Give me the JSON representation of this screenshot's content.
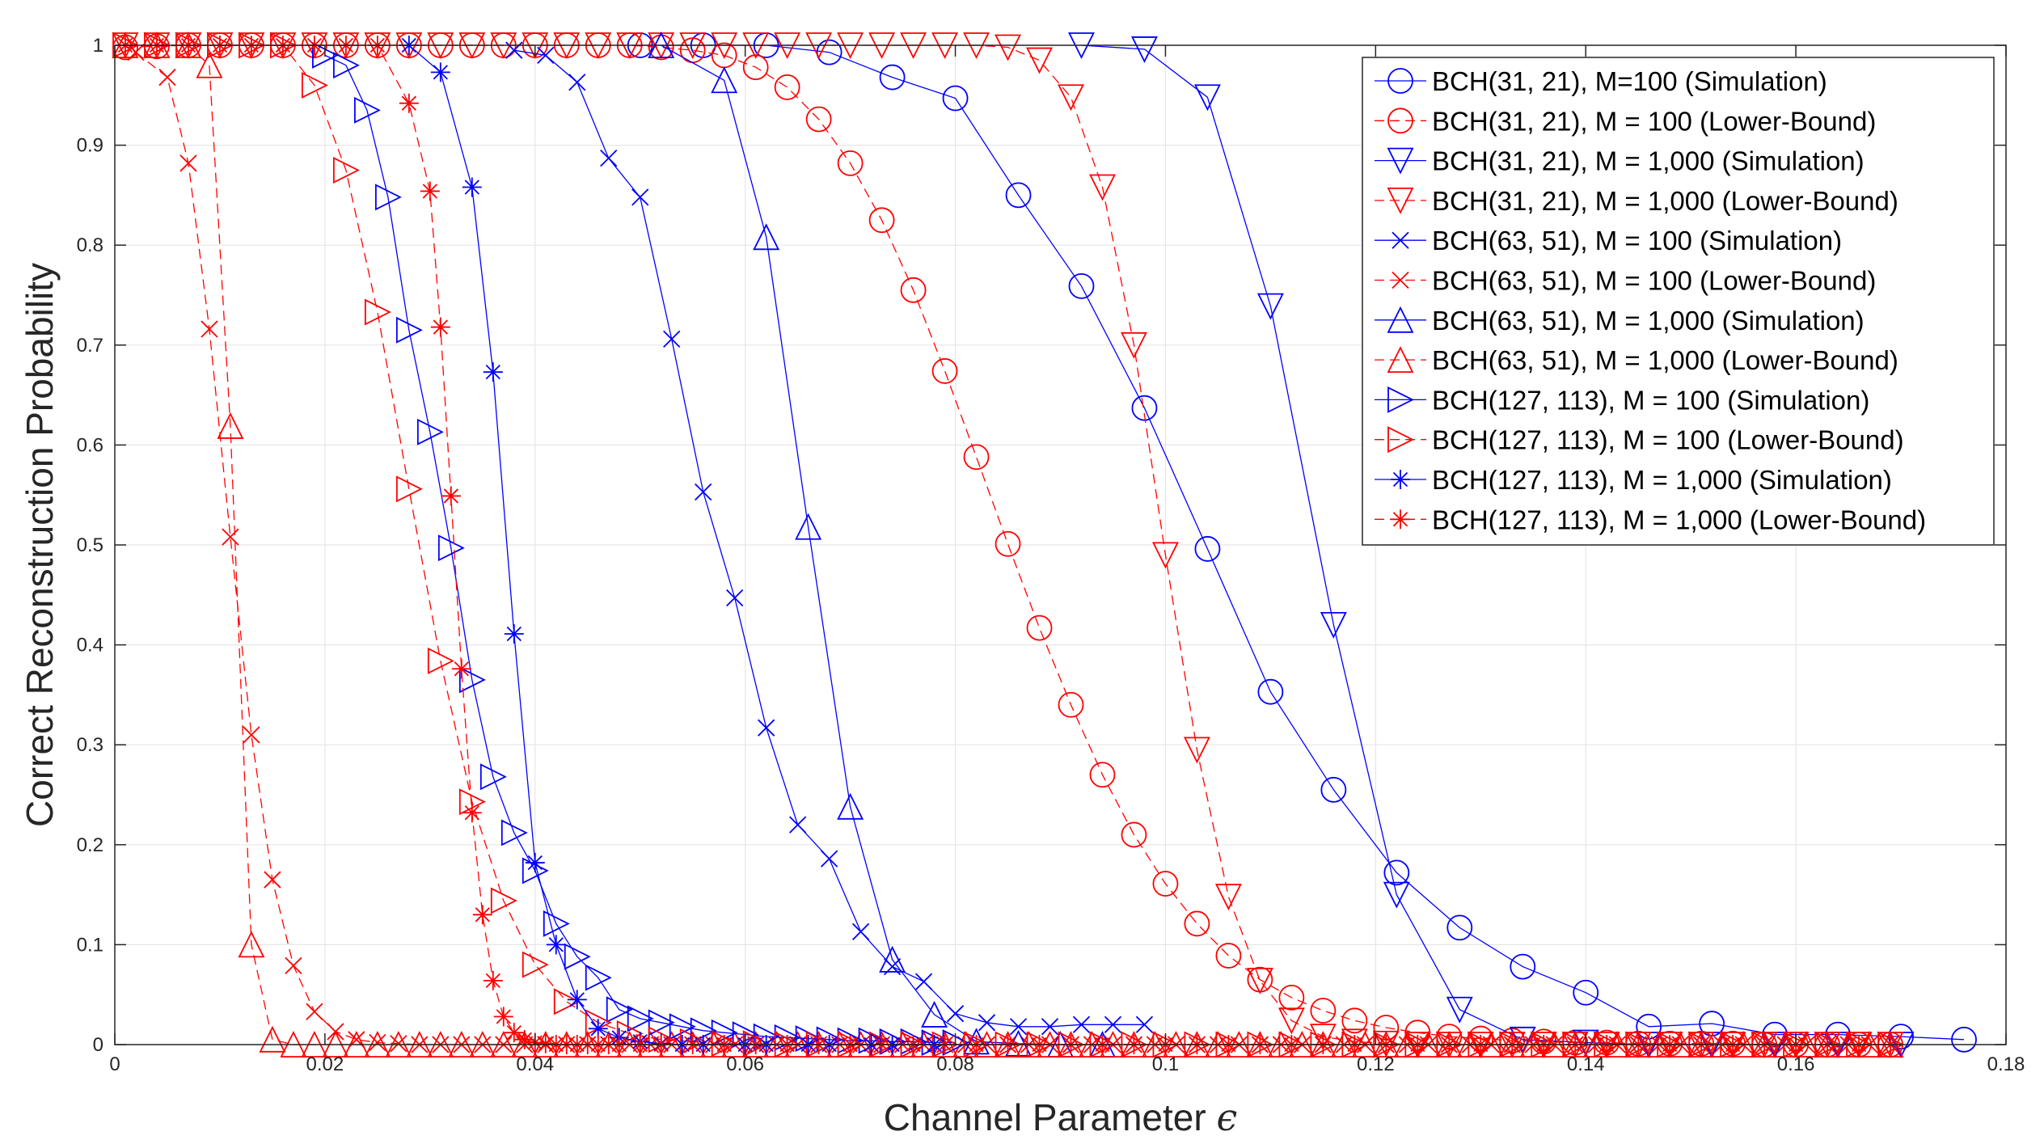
{
  "chart_data": {
    "type": "line",
    "title": "",
    "xlabel": "Channel Parameter ",
    "xlabel_symbol": "ϵ",
    "ylabel": "Correct Reconstruction Probability",
    "xlim": [
      0,
      0.18
    ],
    "ylim": [
      0,
      1
    ],
    "x_ticks": [
      "0",
      "0.02",
      "0.04",
      "0.06",
      "0.08",
      "0.1",
      "0.12",
      "0.14",
      "0.16",
      "0.18"
    ],
    "y_ticks": [
      "0",
      "0.1",
      "0.2",
      "0.3",
      "0.4",
      "0.5",
      "0.6",
      "0.7",
      "0.8",
      "0.9",
      "1"
    ],
    "grid": true,
    "legend_position": "top-right",
    "series": [
      {
        "name": "BCH(31, 21), M=100 (Simulation)",
        "color": "#0000ff",
        "dash": "solid",
        "marker": "circle",
        "x": [
          0.05,
          0.056,
          0.062,
          0.068,
          0.074,
          0.08,
          0.086,
          0.092,
          0.098,
          0.104,
          0.11,
          0.116,
          0.122,
          0.128,
          0.134,
          0.14,
          0.146,
          0.152,
          0.158,
          0.164,
          0.17,
          0.176
        ],
        "y": [
          1,
          1,
          1,
          0.993,
          0.968,
          0.947,
          0.85,
          0.759,
          0.637,
          0.496,
          0.353,
          0.255,
          0.172,
          0.117,
          0.078,
          0.052,
          0.018,
          0.021,
          0.01,
          0.01,
          0.008,
          0.005
        ]
      },
      {
        "name": "BCH(31, 21), M = 100 (Lower-Bound)",
        "color": "#ff0000",
        "dash": "dashed",
        "marker": "circle",
        "x": [
          0.001,
          0.004,
          0.007,
          0.01,
          0.013,
          0.016,
          0.019,
          0.022,
          0.025,
          0.028,
          0.031,
          0.034,
          0.037,
          0.04,
          0.043,
          0.046,
          0.049,
          0.052,
          0.055,
          0.058,
          0.061,
          0.064,
          0.067,
          0.07,
          0.073,
          0.076,
          0.079,
          0.082,
          0.085,
          0.088,
          0.091,
          0.094,
          0.097,
          0.1,
          0.103,
          0.106,
          0.109,
          0.112,
          0.115,
          0.118,
          0.121,
          0.124,
          0.127,
          0.13,
          0.133,
          0.136,
          0.139,
          0.142,
          0.145,
          0.148,
          0.151,
          0.154,
          0.157,
          0.16,
          0.163,
          0.166,
          0.169
        ],
        "y": [
          0.998,
          0.999,
          1,
          1,
          1,
          1,
          1,
          1,
          1,
          1,
          1,
          1,
          1,
          1,
          1,
          1,
          1,
          0.998,
          0.995,
          0.99,
          0.978,
          0.958,
          0.926,
          0.882,
          0.825,
          0.755,
          0.674,
          0.588,
          0.501,
          0.417,
          0.34,
          0.27,
          0.21,
          0.161,
          0.121,
          0.089,
          0.065,
          0.047,
          0.034,
          0.024,
          0.017,
          0.012,
          0.008,
          0.006,
          0.004,
          0.003,
          0.002,
          0.002,
          0.001,
          0.001,
          0.001,
          0.001,
          0,
          0,
          0,
          0,
          0
        ]
      },
      {
        "name": "BCH(31, 21), M = 1,000 (Simulation)",
        "color": "#0000ff",
        "dash": "solid",
        "marker": "triangle-down",
        "x": [
          0.092,
          0.098,
          0.104,
          0.11,
          0.116,
          0.122,
          0.128,
          0.134,
          0.14,
          0.146,
          0.152,
          0.158,
          0.164,
          0.17
        ],
        "y": [
          1,
          0.996,
          0.948,
          0.739,
          0.42,
          0.15,
          0.035,
          0.005,
          0.002,
          0,
          0,
          0,
          0,
          0
        ]
      },
      {
        "name": "BCH(31, 21), M = 1,000 (Lower-Bound)",
        "color": "#ff0000",
        "dash": "dashed",
        "marker": "triangle-down",
        "x": [
          0.001,
          0.004,
          0.007,
          0.01,
          0.013,
          0.016,
          0.019,
          0.022,
          0.025,
          0.028,
          0.031,
          0.034,
          0.037,
          0.04,
          0.043,
          0.046,
          0.049,
          0.052,
          0.055,
          0.058,
          0.061,
          0.064,
          0.067,
          0.07,
          0.073,
          0.076,
          0.079,
          0.082,
          0.085,
          0.088,
          0.091,
          0.094,
          0.097,
          0.1,
          0.103,
          0.106,
          0.109,
          0.112,
          0.115,
          0.118,
          0.121,
          0.124,
          0.127,
          0.13,
          0.133,
          0.136,
          0.139,
          0.142,
          0.145,
          0.148,
          0.151,
          0.154,
          0.157,
          0.16,
          0.163,
          0.166,
          0.169
        ],
        "y": [
          1,
          1,
          1,
          1,
          1,
          1,
          1,
          1,
          1,
          1,
          1,
          1,
          1,
          1,
          1,
          1,
          1,
          1,
          1,
          1,
          1,
          1,
          1,
          1,
          1,
          1,
          1,
          1,
          0.998,
          0.985,
          0.948,
          0.858,
          0.7,
          0.49,
          0.295,
          0.148,
          0.064,
          0.024,
          0.008,
          0.003,
          0.001,
          0,
          0,
          0,
          0,
          0,
          0,
          0,
          0,
          0,
          0,
          0,
          0,
          0,
          0,
          0,
          0
        ]
      },
      {
        "name": "BCH(63, 51), M = 100 (Simulation)",
        "color": "#0000ff",
        "dash": "solid",
        "marker": "x",
        "x": [
          0.038,
          0.041,
          0.044,
          0.047,
          0.05,
          0.053,
          0.056,
          0.059,
          0.062,
          0.065,
          0.068,
          0.071,
          0.074,
          0.077,
          0.08,
          0.083,
          0.086,
          0.089,
          0.092,
          0.095,
          0.098
        ],
        "y": [
          0.995,
          0.99,
          0.963,
          0.887,
          0.848,
          0.706,
          0.553,
          0.447,
          0.317,
          0.22,
          0.186,
          0.113,
          0.078,
          0.063,
          0.031,
          0.022,
          0.018,
          0.018,
          0.02,
          0.02,
          0.02
        ]
      },
      {
        "name": "BCH(63, 51), M = 100 (Lower-Bound)",
        "color": "#ff0000",
        "dash": "dashed",
        "marker": "x",
        "x": [
          0.002,
          0.005,
          0.007,
          0.009,
          0.011,
          0.013,
          0.015,
          0.017,
          0.019,
          0.021,
          0.023,
          0.025,
          0.027,
          0.029,
          0.031,
          0.033,
          0.035,
          0.037,
          0.039,
          0.041,
          0.043,
          0.045,
          0.047,
          0.049,
          0.051,
          0.053,
          0.055,
          0.057,
          0.059,
          0.061,
          0.063,
          0.065,
          0.067,
          0.069,
          0.071,
          0.073,
          0.075,
          0.077,
          0.079,
          0.081,
          0.083,
          0.085,
          0.087,
          0.089,
          0.091,
          0.093,
          0.095,
          0.097,
          0.099,
          0.101,
          0.103,
          0.105,
          0.107,
          0.109,
          0.111,
          0.113,
          0.115,
          0.117,
          0.119,
          0.121,
          0.123,
          0.125,
          0.127,
          0.129,
          0.131,
          0.133,
          0.135,
          0.137,
          0.139,
          0.141,
          0.143,
          0.145,
          0.147,
          0.149,
          0.151,
          0.153,
          0.155,
          0.157,
          0.159,
          0.161,
          0.163,
          0.165,
          0.167,
          0.169
        ],
        "y": [
          0.993,
          0.968,
          0.882,
          0.716,
          0.508,
          0.31,
          0.165,
          0.079,
          0.033,
          0.013,
          0.005,
          0.002,
          0.001,
          0,
          0,
          0,
          0,
          0,
          0,
          0,
          0,
          0,
          0,
          0,
          0,
          0,
          0,
          0,
          0,
          0,
          0,
          0,
          0,
          0,
          0,
          0,
          0,
          0,
          0,
          0,
          0,
          0,
          0,
          0,
          0,
          0,
          0,
          0,
          0,
          0,
          0,
          0,
          0,
          0,
          0,
          0,
          0,
          0,
          0,
          0,
          0,
          0,
          0,
          0,
          0,
          0,
          0,
          0,
          0,
          0,
          0,
          0,
          0,
          0,
          0,
          0,
          0,
          0,
          0,
          0,
          0,
          0,
          0,
          0
        ]
      },
      {
        "name": "BCH(63, 51), M = 1,000 (Simulation)",
        "color": "#0000ff",
        "dash": "solid",
        "marker": "triangle-up",
        "x": [
          0.052,
          0.058,
          0.062,
          0.066,
          0.07,
          0.074,
          0.078,
          0.082,
          0.086,
          0.09,
          0.094
        ],
        "y": [
          1,
          0.965,
          0.808,
          0.518,
          0.238,
          0.085,
          0.03,
          0.003,
          0.001,
          0,
          0
        ]
      },
      {
        "name": "BCH(63, 51), M = 1,000 (Lower-Bound)",
        "color": "#ff0000",
        "dash": "dashed",
        "marker": "triangle-up",
        "x": [
          0.001,
          0.004,
          0.007,
          0.009,
          0.011,
          0.013,
          0.015,
          0.017,
          0.019,
          0.021,
          0.023,
          0.025,
          0.027,
          0.029,
          0.031,
          0.033,
          0.035,
          0.037,
          0.039,
          0.041,
          0.043,
          0.045,
          0.047,
          0.049,
          0.051,
          0.053,
          0.055,
          0.057,
          0.059,
          0.061,
          0.063,
          0.065,
          0.067,
          0.069,
          0.071,
          0.073,
          0.075,
          0.077,
          0.079,
          0.081,
          0.083,
          0.085,
          0.087,
          0.089,
          0.091,
          0.093,
          0.095,
          0.097,
          0.099,
          0.101,
          0.103,
          0.105,
          0.107,
          0.109,
          0.111,
          0.113,
          0.115,
          0.117,
          0.119,
          0.121,
          0.123,
          0.125,
          0.127,
          0.129,
          0.131,
          0.133,
          0.135,
          0.137,
          0.139,
          0.141,
          0.143,
          0.145,
          0.147,
          0.149,
          0.151,
          0.153,
          0.155,
          0.157,
          0.159,
          0.161,
          0.163,
          0.165,
          0.167,
          0.169
        ],
        "y": [
          1,
          1,
          1,
          0.98,
          0.619,
          0.1,
          0.005,
          0,
          0,
          0,
          0,
          0,
          0,
          0,
          0,
          0,
          0,
          0,
          0,
          0,
          0,
          0,
          0,
          0,
          0,
          0,
          0,
          0,
          0,
          0,
          0,
          0,
          0,
          0,
          0,
          0,
          0,
          0,
          0,
          0,
          0,
          0,
          0,
          0,
          0,
          0,
          0,
          0,
          0,
          0,
          0,
          0,
          0,
          0,
          0,
          0,
          0,
          0,
          0,
          0,
          0,
          0,
          0,
          0,
          0,
          0,
          0,
          0,
          0,
          0,
          0,
          0,
          0,
          0,
          0,
          0,
          0,
          0,
          0,
          0,
          0,
          0,
          0,
          0
        ]
      },
      {
        "name": "BCH(127, 113), M = 100 (Simulation)",
        "color": "#0000ff",
        "dash": "solid",
        "marker": "triangle-right",
        "x": [
          0.02,
          0.022,
          0.024,
          0.026,
          0.028,
          0.03,
          0.032,
          0.034,
          0.036,
          0.038,
          0.04,
          0.042,
          0.044,
          0.046,
          0.048,
          0.05,
          0.052,
          0.054,
          0.056,
          0.058,
          0.06,
          0.062,
          0.064,
          0.066,
          0.068,
          0.07,
          0.072,
          0.074,
          0.076,
          0.078,
          0.08
        ],
        "y": [
          0.99,
          0.98,
          0.935,
          0.848,
          0.715,
          0.613,
          0.497,
          0.365,
          0.268,
          0.212,
          0.174,
          0.121,
          0.088,
          0.067,
          0.035,
          0.026,
          0.022,
          0.018,
          0.014,
          0.012,
          0.01,
          0.008,
          0.007,
          0.006,
          0.005,
          0.004,
          0.004,
          0.003,
          0.003,
          0.002,
          0.002
        ]
      },
      {
        "name": "BCH(127, 113), M = 100 (Lower-Bound)",
        "color": "#ff0000",
        "dash": "dashed",
        "marker": "triangle-right",
        "x": [
          0.001,
          0.004,
          0.007,
          0.01,
          0.013,
          0.016,
          0.019,
          0.022,
          0.025,
          0.028,
          0.031,
          0.034,
          0.037,
          0.04,
          0.043,
          0.046,
          0.049,
          0.052,
          0.055,
          0.058,
          0.061,
          0.064,
          0.067,
          0.07,
          0.073,
          0.076,
          0.079,
          0.082,
          0.085,
          0.088,
          0.091,
          0.094,
          0.097,
          0.1,
          0.103,
          0.106,
          0.109,
          0.112,
          0.115,
          0.118,
          0.121,
          0.124,
          0.127,
          0.13,
          0.133,
          0.136,
          0.139,
          0.142,
          0.145,
          0.148,
          0.151,
          0.154,
          0.157,
          0.16,
          0.163,
          0.166,
          0.169
        ],
        "y": [
          1,
          1,
          1,
          1,
          1,
          1,
          0.96,
          0.875,
          0.733,
          0.556,
          0.384,
          0.243,
          0.144,
          0.08,
          0.043,
          0.022,
          0.011,
          0.005,
          0.003,
          0.001,
          0.001,
          0,
          0,
          0,
          0,
          0,
          0,
          0,
          0,
          0,
          0,
          0,
          0,
          0,
          0,
          0,
          0,
          0,
          0,
          0,
          0,
          0,
          0,
          0,
          0,
          0,
          0,
          0,
          0,
          0,
          0,
          0,
          0,
          0,
          0,
          0,
          0
        ]
      },
      {
        "name": "BCH(127, 113), M = 1,000 (Simulation)",
        "color": "#0000ff",
        "dash": "solid",
        "marker": "star",
        "x": [
          0.028,
          0.031,
          0.034,
          0.036,
          0.038,
          0.04,
          0.042,
          0.044,
          0.046,
          0.048,
          0.05,
          0.052,
          0.054,
          0.056,
          0.058,
          0.06,
          0.062,
          0.064,
          0.066,
          0.068,
          0.07,
          0.072,
          0.074,
          0.076,
          0.078
        ],
        "y": [
          1,
          0.973,
          0.858,
          0.673,
          0.411,
          0.182,
          0.1,
          0.045,
          0.016,
          0.007,
          0.003,
          0.001,
          0,
          0,
          0,
          0,
          0,
          0,
          0,
          0,
          0,
          0,
          0,
          0,
          0
        ]
      },
      {
        "name": "BCH(127, 113), M = 1,000 (Lower-Bound)",
        "color": "#ff0000",
        "dash": "dashed",
        "marker": "star",
        "x": [
          0.001,
          0.004,
          0.007,
          0.01,
          0.013,
          0.016,
          0.019,
          0.022,
          0.025,
          0.028,
          0.03,
          0.031,
          0.032,
          0.033,
          0.034,
          0.035,
          0.036,
          0.037,
          0.038,
          0.039,
          0.04,
          0.041,
          0.042,
          0.043,
          0.044,
          0.045,
          0.046,
          0.047,
          0.048,
          0.05,
          0.052,
          0.055,
          0.058,
          0.061,
          0.064,
          0.067,
          0.07,
          0.073,
          0.076,
          0.079,
          0.082,
          0.085,
          0.088,
          0.091,
          0.094,
          0.097,
          0.1,
          0.103,
          0.106,
          0.109,
          0.112,
          0.115,
          0.118,
          0.121,
          0.124,
          0.127,
          0.13,
          0.133,
          0.136,
          0.139,
          0.142,
          0.145,
          0.148,
          0.151,
          0.154,
          0.157,
          0.16,
          0.163,
          0.166,
          0.169
        ],
        "y": [
          1,
          1,
          1,
          1,
          1,
          1,
          1,
          1,
          1,
          0.942,
          0.854,
          0.718,
          0.549,
          0.376,
          0.232,
          0.13,
          0.064,
          0.028,
          0.012,
          0.005,
          0.002,
          0.001,
          0,
          0,
          0,
          0,
          0,
          0,
          0,
          0,
          0,
          0,
          0,
          0,
          0,
          0,
          0,
          0,
          0,
          0,
          0,
          0,
          0,
          0,
          0,
          0,
          0,
          0,
          0,
          0,
          0,
          0,
          0,
          0,
          0,
          0,
          0,
          0,
          0,
          0,
          0,
          0,
          0,
          0,
          0,
          0,
          0,
          0,
          0,
          0
        ]
      }
    ]
  }
}
